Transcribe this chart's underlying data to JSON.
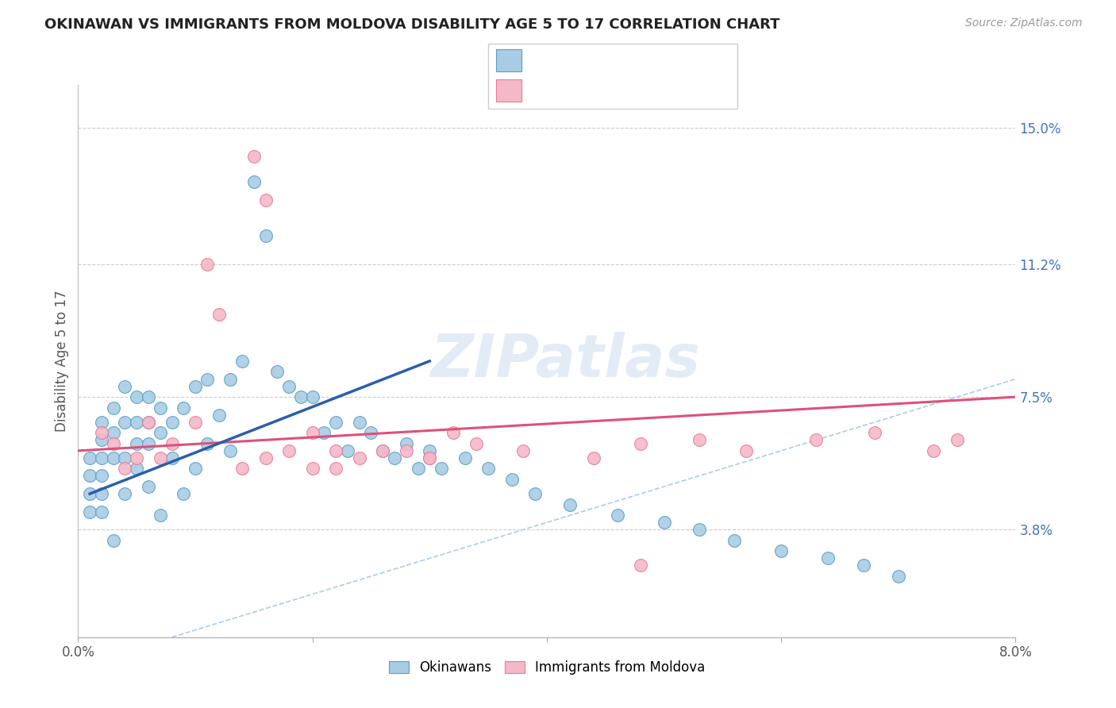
{
  "title": "OKINAWAN VS IMMIGRANTS FROM MOLDOVA DISABILITY AGE 5 TO 17 CORRELATION CHART",
  "source": "Source: ZipAtlas.com",
  "ylabel": "Disability Age 5 to 17",
  "ytick_labels": [
    "3.8%",
    "7.5%",
    "11.2%",
    "15.0%"
  ],
  "ytick_values": [
    0.038,
    0.075,
    0.112,
    0.15
  ],
  "xmin": 0.0,
  "xmax": 0.08,
  "ymin": 0.008,
  "ymax": 0.162,
  "color_blue": "#a8cce4",
  "color_pink": "#f4b8c8",
  "color_blue_edge": "#5b9ec9",
  "color_pink_edge": "#e87a9a",
  "color_blue_line": "#2a5faa",
  "color_pink_line": "#e0507a",
  "color_diag": "#aaccee",
  "blue_x": [
    0.001,
    0.001,
    0.001,
    0.001,
    0.002,
    0.002,
    0.002,
    0.002,
    0.002,
    0.002,
    0.003,
    0.003,
    0.003,
    0.003,
    0.004,
    0.004,
    0.004,
    0.004,
    0.005,
    0.005,
    0.005,
    0.005,
    0.006,
    0.006,
    0.006,
    0.006,
    0.007,
    0.007,
    0.007,
    0.008,
    0.008,
    0.009,
    0.009,
    0.01,
    0.01,
    0.011,
    0.011,
    0.012,
    0.013,
    0.013,
    0.014,
    0.015,
    0.016,
    0.017,
    0.018,
    0.019,
    0.02,
    0.021,
    0.022,
    0.023,
    0.024,
    0.025,
    0.026,
    0.027,
    0.028,
    0.029,
    0.03,
    0.031,
    0.033,
    0.035,
    0.037,
    0.039,
    0.042,
    0.046,
    0.05,
    0.053,
    0.056,
    0.06,
    0.064,
    0.067,
    0.07
  ],
  "blue_y": [
    0.058,
    0.053,
    0.048,
    0.043,
    0.068,
    0.063,
    0.058,
    0.053,
    0.048,
    0.043,
    0.072,
    0.065,
    0.058,
    0.035,
    0.078,
    0.068,
    0.058,
    0.048,
    0.075,
    0.068,
    0.062,
    0.055,
    0.075,
    0.068,
    0.062,
    0.05,
    0.072,
    0.065,
    0.042,
    0.068,
    0.058,
    0.072,
    0.048,
    0.078,
    0.055,
    0.08,
    0.062,
    0.07,
    0.08,
    0.06,
    0.085,
    0.135,
    0.12,
    0.082,
    0.078,
    0.075,
    0.075,
    0.065,
    0.068,
    0.06,
    0.068,
    0.065,
    0.06,
    0.058,
    0.062,
    0.055,
    0.06,
    0.055,
    0.058,
    0.055,
    0.052,
    0.048,
    0.045,
    0.042,
    0.04,
    0.038,
    0.035,
    0.032,
    0.03,
    0.028,
    0.025
  ],
  "pink_x": [
    0.002,
    0.003,
    0.004,
    0.005,
    0.006,
    0.007,
    0.008,
    0.01,
    0.011,
    0.012,
    0.014,
    0.015,
    0.016,
    0.018,
    0.02,
    0.022,
    0.024,
    0.026,
    0.028,
    0.03,
    0.032,
    0.034,
    0.038,
    0.044,
    0.048,
    0.053,
    0.057,
    0.063,
    0.068,
    0.073,
    0.02,
    0.03,
    0.016,
    0.022,
    0.048,
    0.075
  ],
  "pink_y": [
    0.065,
    0.062,
    0.055,
    0.058,
    0.068,
    0.058,
    0.062,
    0.068,
    0.112,
    0.098,
    0.055,
    0.142,
    0.13,
    0.06,
    0.065,
    0.06,
    0.058,
    0.06,
    0.06,
    0.058,
    0.065,
    0.062,
    0.06,
    0.058,
    0.062,
    0.063,
    0.06,
    0.063,
    0.065,
    0.06,
    0.055,
    0.058,
    0.058,
    0.055,
    0.028,
    0.063
  ],
  "blue_line_x": [
    0.001,
    0.03
  ],
  "blue_line_y": [
    0.048,
    0.085
  ],
  "pink_line_x": [
    0.0,
    0.08
  ],
  "pink_line_y": [
    0.06,
    0.075
  ]
}
